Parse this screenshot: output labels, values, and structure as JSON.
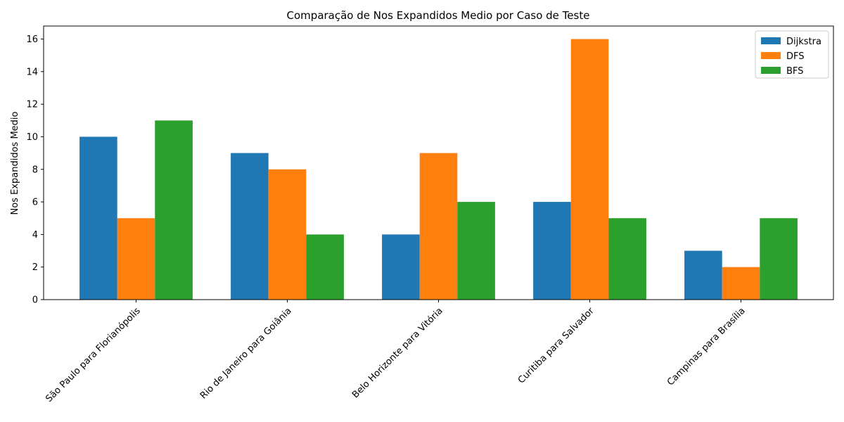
{
  "chart_data": {
    "type": "bar",
    "title": "Comparação de Nos Expandidos Medio por Caso de Teste",
    "xlabel": "",
    "ylabel": "Nos Expandidos Medio",
    "categories": [
      "São Paulo para Florianópolis",
      "Rio de Janeiro para Goiânia",
      "Belo Horizonte para Vitória",
      "Curitiba para Salvador",
      "Campinas para Brasília"
    ],
    "series": [
      {
        "name": "Dijkstra",
        "color": "#1f77b4",
        "values": [
          10,
          9,
          4,
          6,
          3
        ]
      },
      {
        "name": "DFS",
        "color": "#ff7f0e",
        "values": [
          5,
          8,
          9,
          16,
          2
        ]
      },
      {
        "name": "BFS",
        "color": "#2ca02c",
        "values": [
          11,
          4,
          6,
          5,
          5
        ]
      }
    ],
    "ylim": [
      0,
      16.8
    ],
    "yticks": [
      0,
      2,
      4,
      6,
      8,
      10,
      12,
      14,
      16
    ],
    "grid": false,
    "legend_position": "top-right"
  }
}
